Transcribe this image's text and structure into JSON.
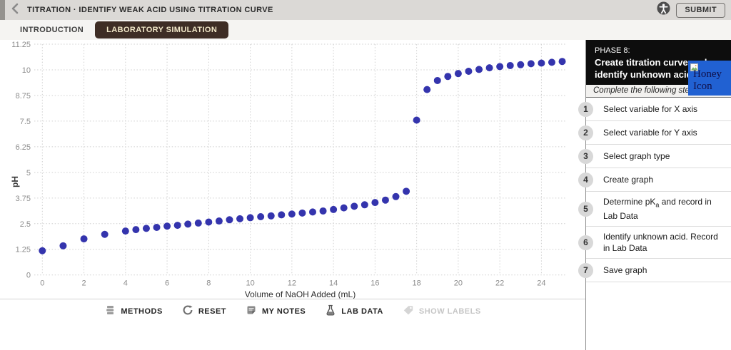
{
  "top_bar": {
    "title": "TITRATION · IDENTIFY WEAK ACID USING TITRATION CURVE",
    "submit_label": "SUBMIT"
  },
  "tabs": [
    {
      "label": "INTRODUCTION",
      "active": false
    },
    {
      "label": "LABORATORY SIMULATION",
      "active": true
    }
  ],
  "chart_data": {
    "type": "scatter",
    "title": "",
    "xlabel": "Volume of NaOH Added (mL)",
    "ylabel": "pH",
    "xlim": [
      0,
      25.2
    ],
    "ylim": [
      0,
      11.25
    ],
    "x_ticks": [
      0,
      2,
      4,
      6,
      8,
      10,
      12,
      14,
      16,
      18,
      20,
      22,
      24
    ],
    "y_ticks": [
      0,
      1.25,
      2.5,
      3.75,
      5,
      6.25,
      7.5,
      8.75,
      10,
      11.25
    ],
    "grid": "dotted",
    "point_color": "#3434ad",
    "x": [
      0,
      1,
      2,
      3,
      4,
      4.5,
      5,
      5.5,
      6,
      6.5,
      7,
      7.5,
      8,
      8.5,
      9,
      9.5,
      10,
      10.5,
      11,
      11.5,
      12,
      12.5,
      13,
      13.5,
      14,
      14.5,
      15,
      15.5,
      16,
      16.5,
      17,
      17.5,
      18,
      18.5,
      19,
      19.5,
      20,
      20.5,
      21,
      21.5,
      22,
      22.5,
      23,
      23.5,
      24,
      24.5,
      25
    ],
    "y": [
      1.18,
      1.42,
      1.76,
      1.98,
      2.14,
      2.21,
      2.27,
      2.32,
      2.38,
      2.42,
      2.48,
      2.53,
      2.58,
      2.63,
      2.69,
      2.74,
      2.79,
      2.84,
      2.88,
      2.93,
      2.97,
      3.02,
      3.07,
      3.12,
      3.19,
      3.27,
      3.35,
      3.42,
      3.53,
      3.65,
      3.82,
      4.08,
      7.55,
      9.04,
      9.48,
      9.68,
      9.82,
      9.93,
      10.02,
      10.1,
      10.16,
      10.21,
      10.25,
      10.3,
      10.33,
      10.37,
      10.41
    ]
  },
  "sidebar": {
    "phase_label": "PHASE 8:",
    "phase_title": "Create titration curve and identify unknown acid",
    "honey_icon_alt": "Honey Icon",
    "instruction": "Complete the following steps:",
    "steps": [
      {
        "number": "1",
        "parts": [
          {
            "text": "Select variable for X axis"
          }
        ]
      },
      {
        "number": "2",
        "parts": [
          {
            "text": "Select variable for Y axis"
          }
        ]
      },
      {
        "number": "3",
        "parts": [
          {
            "text": "Select graph type"
          }
        ]
      },
      {
        "number": "4",
        "parts": [
          {
            "text": "Create graph"
          }
        ]
      },
      {
        "number": "5",
        "parts": [
          {
            "text": "Determine pK"
          },
          {
            "text": "a",
            "sub": true
          },
          {
            "text": " and record in Lab Data"
          }
        ]
      },
      {
        "number": "6",
        "parts": [
          {
            "text": "Identify unknown acid. Record in Lab Data"
          }
        ]
      },
      {
        "number": "7",
        "parts": [
          {
            "text": "Save graph"
          }
        ]
      }
    ]
  },
  "toolbar": {
    "items": [
      {
        "label": "METHODS",
        "icon": "methods-icon",
        "enabled": true
      },
      {
        "label": "RESET",
        "icon": "reset-icon",
        "enabled": true
      },
      {
        "label": "MY NOTES",
        "icon": "notes-icon",
        "enabled": true
      },
      {
        "label": "LAB DATA",
        "icon": "flask-icon",
        "enabled": true
      },
      {
        "label": "SHOW LABELS",
        "icon": "tag-icon",
        "enabled": false
      }
    ]
  }
}
